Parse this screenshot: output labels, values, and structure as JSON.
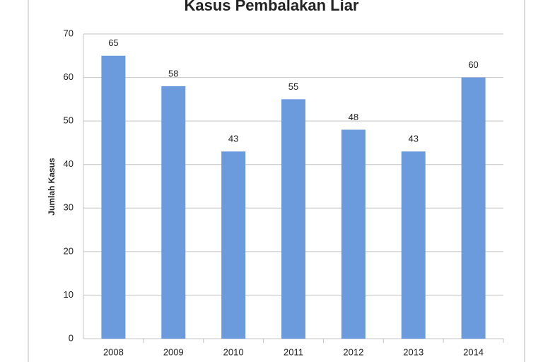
{
  "chart_data": {
    "type": "bar",
    "title": "Kasus Pembalakan Liar",
    "y_label": "Jumlah Kasus",
    "categories": [
      "2008",
      "2009",
      "2010",
      "2011",
      "2012",
      "2013",
      "2014"
    ],
    "values": [
      65,
      58,
      43,
      55,
      48,
      43,
      60
    ],
    "color": "#6b9bdc",
    "ylim": [
      0,
      70
    ],
    "yticks": [
      0,
      10,
      20,
      30,
      40,
      50,
      60,
      70
    ],
    "grid": true
  }
}
